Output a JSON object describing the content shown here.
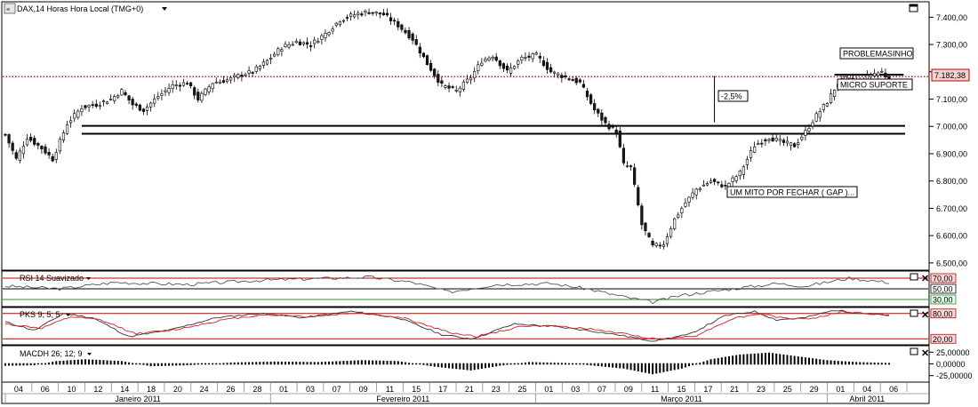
{
  "header": {
    "menu_icon": "chart-menu-icon",
    "title": "DAX,14 Horas Hora Local (TMG+0)",
    "dropdown_icon": "dropdown-arrow-icon",
    "restore_icon": "window-restore-icon"
  },
  "main_panel": {
    "price_axis": [
      {
        "label": "7.400,00",
        "value": 7400
      },
      {
        "label": "7.300,00",
        "value": 7300
      },
      {
        "label": "7.200,00",
        "value": 7200
      },
      {
        "label": "7.100,00",
        "value": 7100
      },
      {
        "label": "7.000,00",
        "value": 7000
      },
      {
        "label": "6.900,00",
        "value": 6900
      },
      {
        "label": "6.800,00",
        "value": 6800
      },
      {
        "label": "6.700,00",
        "value": 6700
      },
      {
        "label": "6.600,00",
        "value": 6600
      },
      {
        "label": "6.500,00",
        "value": 6500
      }
    ],
    "current_price_label": "7.182,38",
    "current_price": 7182.38
  },
  "chart_data": [
    {
      "type": "candlestick",
      "title": "DAX,14 Horas Hora Local (TMG+0)",
      "ylim": [
        6480,
        7450
      ],
      "anchors": [
        {
          "i": 0,
          "v": 6970
        },
        {
          "i": 3,
          "v": 6880
        },
        {
          "i": 6,
          "v": 6960
        },
        {
          "i": 10,
          "v": 6920
        },
        {
          "i": 13,
          "v": 6880
        },
        {
          "i": 17,
          "v": 7010
        },
        {
          "i": 21,
          "v": 7070
        },
        {
          "i": 25,
          "v": 7080
        },
        {
          "i": 29,
          "v": 7100
        },
        {
          "i": 32,
          "v": 7130
        },
        {
          "i": 35,
          "v": 7080
        },
        {
          "i": 38,
          "v": 7060
        },
        {
          "i": 42,
          "v": 7110
        },
        {
          "i": 46,
          "v": 7150
        },
        {
          "i": 50,
          "v": 7160
        },
        {
          "i": 53,
          "v": 7100
        },
        {
          "i": 57,
          "v": 7160
        },
        {
          "i": 61,
          "v": 7170
        },
        {
          "i": 65,
          "v": 7190
        },
        {
          "i": 68,
          "v": 7200
        },
        {
          "i": 72,
          "v": 7240
        },
        {
          "i": 76,
          "v": 7290
        },
        {
          "i": 80,
          "v": 7310
        },
        {
          "i": 84,
          "v": 7300
        },
        {
          "i": 88,
          "v": 7340
        },
        {
          "i": 92,
          "v": 7390
        },
        {
          "i": 96,
          "v": 7410
        },
        {
          "i": 100,
          "v": 7420
        },
        {
          "i": 104,
          "v": 7410
        },
        {
          "i": 108,
          "v": 7370
        },
        {
          "i": 112,
          "v": 7320
        },
        {
          "i": 116,
          "v": 7230
        },
        {
          "i": 120,
          "v": 7150
        },
        {
          "i": 124,
          "v": 7130
        },
        {
          "i": 128,
          "v": 7180
        },
        {
          "i": 131,
          "v": 7240
        },
        {
          "i": 134,
          "v": 7260
        },
        {
          "i": 138,
          "v": 7200
        },
        {
          "i": 142,
          "v": 7250
        },
        {
          "i": 146,
          "v": 7260
        },
        {
          "i": 150,
          "v": 7200
        },
        {
          "i": 154,
          "v": 7180
        },
        {
          "i": 158,
          "v": 7160
        },
        {
          "i": 162,
          "v": 7060
        },
        {
          "i": 165,
          "v": 7010
        },
        {
          "i": 168,
          "v": 6980
        },
        {
          "i": 170,
          "v": 6860
        },
        {
          "i": 172,
          "v": 6850
        },
        {
          "i": 175,
          "v": 6640
        },
        {
          "i": 178,
          "v": 6560
        },
        {
          "i": 181,
          "v": 6570
        },
        {
          "i": 184,
          "v": 6660
        },
        {
          "i": 187,
          "v": 6720
        },
        {
          "i": 190,
          "v": 6770
        },
        {
          "i": 194,
          "v": 6800
        },
        {
          "i": 198,
          "v": 6780
        },
        {
          "i": 202,
          "v": 6830
        },
        {
          "i": 206,
          "v": 6930
        },
        {
          "i": 210,
          "v": 6960
        },
        {
          "i": 214,
          "v": 6940
        },
        {
          "i": 217,
          "v": 6930
        },
        {
          "i": 220,
          "v": 6980
        },
        {
          "i": 223,
          "v": 7040
        },
        {
          "i": 226,
          "v": 7090
        },
        {
          "i": 229,
          "v": 7160
        },
        {
          "i": 232,
          "v": 7180
        },
        {
          "i": 235,
          "v": 7160
        },
        {
          "i": 238,
          "v": 7190
        },
        {
          "i": 241,
          "v": 7200
        },
        {
          "i": 243,
          "v": 7170
        }
      ],
      "horizontal_lines": [
        {
          "value": 7182.38,
          "style": "dotted",
          "color": "#c00000"
        },
        {
          "value": 7002,
          "style": "solid",
          "color": "#000000"
        },
        {
          "value": 6973,
          "style": "solid",
          "color": "#000000"
        },
        {
          "value": 7189,
          "style": "solid",
          "color": "#000000",
          "segment": "short"
        }
      ],
      "annotations": [
        {
          "text": "PROBLEMASINHO"
        },
        {
          "text": "MICRO SUPORTE"
        },
        {
          "text": "-2,5%"
        },
        {
          "text": "UM MITO POR FECHAR ( GAP )..."
        }
      ]
    },
    {
      "type": "line",
      "title": "RSI 14 Suavizado",
      "ylim": [
        20,
        80
      ],
      "levels": [
        {
          "label": "70,00",
          "value": 70,
          "color": "#c00000"
        },
        {
          "label": "50,00",
          "value": 50,
          "color": "#000000"
        },
        {
          "label": "30,00",
          "value": 30,
          "color": "#2e8b2e"
        }
      ],
      "series": [
        {
          "color": "#555555",
          "anchors": [
            {
              "i": 0,
              "v": 55
            },
            {
              "i": 15,
              "v": 50
            },
            {
              "i": 30,
              "v": 62
            },
            {
              "i": 50,
              "v": 58
            },
            {
              "i": 70,
              "v": 66
            },
            {
              "i": 90,
              "v": 70
            },
            {
              "i": 100,
              "v": 72
            },
            {
              "i": 112,
              "v": 62
            },
            {
              "i": 122,
              "v": 44
            },
            {
              "i": 135,
              "v": 58
            },
            {
              "i": 150,
              "v": 60
            },
            {
              "i": 160,
              "v": 50
            },
            {
              "i": 170,
              "v": 35
            },
            {
              "i": 178,
              "v": 25
            },
            {
              "i": 186,
              "v": 38
            },
            {
              "i": 200,
              "v": 50
            },
            {
              "i": 212,
              "v": 60
            },
            {
              "i": 220,
              "v": 55
            },
            {
              "i": 232,
              "v": 70
            },
            {
              "i": 243,
              "v": 62
            }
          ]
        }
      ]
    },
    {
      "type": "line",
      "title": "PKS 9; 5; 5",
      "ylim": [
        10,
        90
      ],
      "levels": [
        {
          "label": "80,00",
          "value": 80,
          "color": "#c00000"
        },
        {
          "label": "20,00",
          "value": 20,
          "color": "#c00000"
        }
      ],
      "series": [
        {
          "color": "#333333",
          "anchors": [
            {
              "i": 0,
              "v": 60
            },
            {
              "i": 8,
              "v": 40
            },
            {
              "i": 16,
              "v": 80
            },
            {
              "i": 24,
              "v": 70
            },
            {
              "i": 34,
              "v": 25
            },
            {
              "i": 45,
              "v": 40
            },
            {
              "i": 58,
              "v": 70
            },
            {
              "i": 70,
              "v": 80
            },
            {
              "i": 82,
              "v": 70
            },
            {
              "i": 95,
              "v": 85
            },
            {
              "i": 108,
              "v": 70
            },
            {
              "i": 120,
              "v": 30
            },
            {
              "i": 128,
              "v": 20
            },
            {
              "i": 140,
              "v": 55
            },
            {
              "i": 150,
              "v": 50
            },
            {
              "i": 160,
              "v": 40
            },
            {
              "i": 168,
              "v": 30
            },
            {
              "i": 178,
              "v": 15
            },
            {
              "i": 188,
              "v": 30
            },
            {
              "i": 198,
              "v": 75
            },
            {
              "i": 206,
              "v": 85
            },
            {
              "i": 212,
              "v": 65
            },
            {
              "i": 220,
              "v": 70
            },
            {
              "i": 228,
              "v": 88
            },
            {
              "i": 236,
              "v": 80
            },
            {
              "i": 243,
              "v": 75
            }
          ]
        },
        {
          "color": "#d02020",
          "anchors": [
            {
              "i": 0,
              "v": 55
            },
            {
              "i": 10,
              "v": 45
            },
            {
              "i": 18,
              "v": 72
            },
            {
              "i": 26,
              "v": 65
            },
            {
              "i": 36,
              "v": 32
            },
            {
              "i": 47,
              "v": 42
            },
            {
              "i": 60,
              "v": 65
            },
            {
              "i": 72,
              "v": 78
            },
            {
              "i": 84,
              "v": 72
            },
            {
              "i": 97,
              "v": 82
            },
            {
              "i": 110,
              "v": 68
            },
            {
              "i": 122,
              "v": 35
            },
            {
              "i": 130,
              "v": 25
            },
            {
              "i": 142,
              "v": 50
            },
            {
              "i": 152,
              "v": 50
            },
            {
              "i": 162,
              "v": 42
            },
            {
              "i": 170,
              "v": 32
            },
            {
              "i": 180,
              "v": 18
            },
            {
              "i": 190,
              "v": 28
            },
            {
              "i": 200,
              "v": 68
            },
            {
              "i": 208,
              "v": 80
            },
            {
              "i": 214,
              "v": 68
            },
            {
              "i": 222,
              "v": 68
            },
            {
              "i": 230,
              "v": 84
            },
            {
              "i": 238,
              "v": 80
            },
            {
              "i": 243,
              "v": 76
            }
          ]
        }
      ]
    },
    {
      "type": "bar",
      "title": "MACDH 26; 12; 9",
      "ylim": [
        -35,
        35
      ],
      "levels": [
        {
          "label": "25,00000",
          "value": 25
        },
        {
          "label": "0,00000",
          "value": 0
        },
        {
          "label": "-25,00000",
          "value": -25
        }
      ],
      "anchors": [
        {
          "i": 0,
          "v": -4
        },
        {
          "i": 8,
          "v": -3
        },
        {
          "i": 14,
          "v": 6
        },
        {
          "i": 22,
          "v": 10
        },
        {
          "i": 32,
          "v": 6
        },
        {
          "i": 40,
          "v": -5
        },
        {
          "i": 50,
          "v": -3
        },
        {
          "i": 62,
          "v": 3
        },
        {
          "i": 74,
          "v": 5
        },
        {
          "i": 86,
          "v": 4
        },
        {
          "i": 98,
          "v": 8
        },
        {
          "i": 108,
          "v": 6
        },
        {
          "i": 118,
          "v": -6
        },
        {
          "i": 128,
          "v": -14
        },
        {
          "i": 136,
          "v": -4
        },
        {
          "i": 144,
          "v": 4
        },
        {
          "i": 154,
          "v": 2
        },
        {
          "i": 162,
          "v": -4
        },
        {
          "i": 170,
          "v": -10
        },
        {
          "i": 178,
          "v": -22
        },
        {
          "i": 186,
          "v": -10
        },
        {
          "i": 194,
          "v": 10
        },
        {
          "i": 202,
          "v": 20
        },
        {
          "i": 210,
          "v": 24
        },
        {
          "i": 218,
          "v": 16
        },
        {
          "i": 226,
          "v": 8
        },
        {
          "i": 234,
          "v": 4
        },
        {
          "i": 243,
          "v": 2
        }
      ]
    }
  ],
  "panels": {
    "rsi": {
      "title": "RSI 14 Suavizado",
      "close_icon": "close-x-icon"
    },
    "pks": {
      "title": "PKS 9; 5; 5",
      "close_icon": "close-x-icon"
    },
    "macd": {
      "title": "MACDH 26; 12; 9",
      "close_icon": "close-x-icon"
    }
  },
  "time_axis": {
    "days": [
      "04",
      "06",
      "10",
      "12",
      "14",
      "18",
      "20",
      "24",
      "26",
      "28",
      "01",
      "03",
      "07",
      "09",
      "11",
      "15",
      "17",
      "21",
      "23",
      "25",
      "01",
      "03",
      "07",
      "09",
      "11",
      "15",
      "17",
      "21",
      "23",
      "25",
      "29",
      "01",
      "04",
      "06"
    ],
    "months": [
      {
        "label": "Janeiro 2011"
      },
      {
        "label": "Fevereiro 2011"
      },
      {
        "label": "Março 2011"
      },
      {
        "label": "Abril 2011"
      }
    ]
  }
}
